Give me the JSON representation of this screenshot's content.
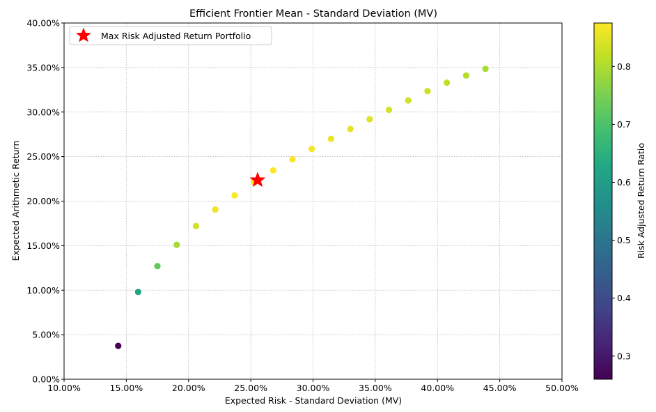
{
  "chart_data": {
    "type": "scatter",
    "title": "Efficient Frontier Mean - Standard Deviation (MV)",
    "xlabel": "Expected Risk - Standard Deviation (MV)",
    "ylabel": "Expected Arithmetic Return",
    "xlim": [
      0.1,
      0.5
    ],
    "ylim": [
      0.0,
      0.4
    ],
    "x_tick_values": [
      0.1,
      0.15,
      0.2,
      0.25,
      0.3,
      0.35,
      0.4,
      0.45,
      0.5
    ],
    "x_tick_labels": [
      "10.00%",
      "15.00%",
      "20.00%",
      "25.00%",
      "30.00%",
      "35.00%",
      "40.00%",
      "45.00%",
      "50.00%"
    ],
    "y_tick_values": [
      0.0,
      0.05,
      0.1,
      0.15,
      0.2,
      0.25,
      0.3,
      0.35,
      0.4
    ],
    "y_tick_labels": [
      "0.00%",
      "5.00%",
      "10.00%",
      "15.00%",
      "20.00%",
      "25.00%",
      "30.00%",
      "35.00%",
      "40.00%"
    ],
    "grid": true,
    "legend": {
      "placement": "top-left",
      "entries": [
        "Max Risk Adjusted Return Portfolio"
      ]
    },
    "colorbar": {
      "label": "Risk Adjusted Return Ratio",
      "range": [
        0.26,
        0.875
      ],
      "tick_values": [
        0.3,
        0.4,
        0.5,
        0.6,
        0.7,
        0.8
      ],
      "tick_labels": [
        "0.3",
        "0.4",
        "0.5",
        "0.6",
        "0.7",
        "0.8"
      ],
      "colormap": "viridis"
    },
    "points": [
      {
        "x": 0.1435,
        "y": 0.0375,
        "c": 0.26
      },
      {
        "x": 0.1595,
        "y": 0.098,
        "c": 0.615
      },
      {
        "x": 0.175,
        "y": 0.127,
        "c": 0.726
      },
      {
        "x": 0.1905,
        "y": 0.151,
        "c": 0.793
      },
      {
        "x": 0.206,
        "y": 0.172,
        "c": 0.835
      },
      {
        "x": 0.2215,
        "y": 0.1905,
        "c": 0.86
      },
      {
        "x": 0.237,
        "y": 0.2065,
        "c": 0.872
      },
      {
        "x": 0.2525,
        "y": 0.2215,
        "c": 0.876
      },
      {
        "x": 0.268,
        "y": 0.2345,
        "c": 0.875
      },
      {
        "x": 0.2835,
        "y": 0.247,
        "c": 0.871
      },
      {
        "x": 0.299,
        "y": 0.2585,
        "c": 0.865
      },
      {
        "x": 0.3145,
        "y": 0.27,
        "c": 0.858
      },
      {
        "x": 0.33,
        "y": 0.281,
        "c": 0.851
      },
      {
        "x": 0.3455,
        "y": 0.292,
        "c": 0.845
      },
      {
        "x": 0.361,
        "y": 0.3025,
        "c": 0.838
      },
      {
        "x": 0.3765,
        "y": 0.313,
        "c": 0.832
      },
      {
        "x": 0.392,
        "y": 0.3235,
        "c": 0.826
      },
      {
        "x": 0.4075,
        "y": 0.333,
        "c": 0.818
      },
      {
        "x": 0.423,
        "y": 0.341,
        "c": 0.806
      },
      {
        "x": 0.4385,
        "y": 0.3485,
        "c": 0.795
      }
    ],
    "highlight": {
      "label": "Max Risk Adjusted Return Portfolio",
      "x": 0.2555,
      "y": 0.2235,
      "marker": "star",
      "color": "#ff0000"
    }
  }
}
